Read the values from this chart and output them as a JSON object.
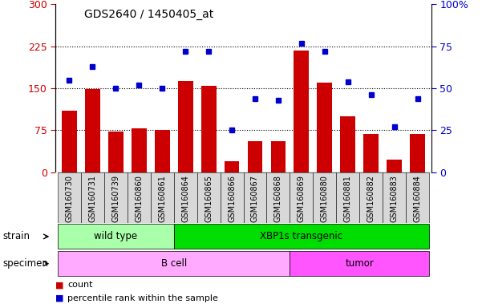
{
  "title": "GDS2640 / 1450405_at",
  "samples": [
    "GSM160730",
    "GSM160731",
    "GSM160739",
    "GSM160860",
    "GSM160861",
    "GSM160864",
    "GSM160865",
    "GSM160866",
    "GSM160867",
    "GSM160868",
    "GSM160869",
    "GSM160880",
    "GSM160881",
    "GSM160882",
    "GSM160883",
    "GSM160884"
  ],
  "counts": [
    110,
    148,
    72,
    78,
    75,
    163,
    155,
    20,
    55,
    55,
    218,
    160,
    100,
    68,
    22,
    68
  ],
  "percentiles": [
    55,
    63,
    50,
    52,
    50,
    72,
    72,
    25,
    44,
    43,
    77,
    72,
    54,
    46,
    27,
    44
  ],
  "ylim_left": [
    0,
    300
  ],
  "ylim_right": [
    0,
    100
  ],
  "yticks_left": [
    0,
    75,
    150,
    225,
    300
  ],
  "ytick_labels_left": [
    "0",
    "75",
    "150",
    "225",
    "300"
  ],
  "yticks_right": [
    0,
    25,
    50,
    75,
    100
  ],
  "ytick_labels_right": [
    "0",
    "25",
    "50",
    "75",
    "100%"
  ],
  "hlines": [
    75,
    150,
    225
  ],
  "bar_color": "#cc0000",
  "dot_color": "#0000cc",
  "strain_groups": [
    {
      "label": "wild type",
      "start": 0,
      "end": 5,
      "color": "#aaffaa"
    },
    {
      "label": "XBP1s transgenic",
      "start": 5,
      "end": 16,
      "color": "#00dd00"
    }
  ],
  "specimen_groups": [
    {
      "label": "B cell",
      "start": 0,
      "end": 10,
      "color": "#ffaaff"
    },
    {
      "label": "tumor",
      "start": 10,
      "end": 16,
      "color": "#ff55ff"
    }
  ],
  "legend_count_label": "count",
  "legend_pct_label": "percentile rank within the sample",
  "strain_label": "strain",
  "specimen_label": "specimen",
  "bg_color": "#d8d8d8",
  "plot_bg_color": "#ffffff",
  "fig_bg_color": "#ffffff"
}
